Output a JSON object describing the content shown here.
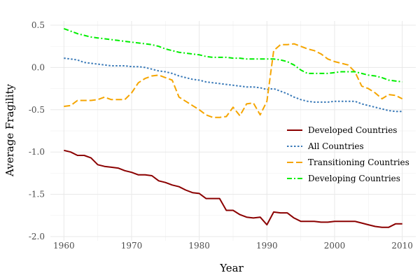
{
  "chart_data": {
    "type": "line",
    "title": "",
    "xlabel": "Year",
    "ylabel": "Average Fragility",
    "xlim": [
      1958,
      2012
    ],
    "ylim": [
      -2.05,
      0.55
    ],
    "x_ticks": [
      1960,
      1970,
      1980,
      1990,
      2000,
      2010
    ],
    "y_ticks": [
      -2.0,
      -1.5,
      -1.0,
      -0.5,
      0.0,
      0.5
    ],
    "x_tick_labels": [
      "1960",
      "1970",
      "1980",
      "1990",
      "2000",
      "2010"
    ],
    "y_tick_labels": [
      "-2.0",
      "-1.5",
      "-1.0",
      "-0.5",
      "0.0",
      "0.5"
    ],
    "grid": true,
    "legend_position": "right",
    "x": [
      1960,
      1961,
      1962,
      1963,
      1964,
      1965,
      1966,
      1967,
      1968,
      1969,
      1970,
      1971,
      1972,
      1973,
      1974,
      1975,
      1976,
      1977,
      1978,
      1979,
      1980,
      1981,
      1982,
      1983,
      1984,
      1985,
      1986,
      1987,
      1988,
      1989,
      1990,
      1991,
      1992,
      1993,
      1994,
      1995,
      1996,
      1997,
      1998,
      1999,
      2000,
      2001,
      2002,
      2003,
      2004,
      2005,
      2006,
      2007,
      2008,
      2009,
      2010
    ],
    "series": [
      {
        "name": "Developed Countries",
        "color": "#8b0000",
        "dash": "solid",
        "values": [
          -0.98,
          -1.0,
          -1.04,
          -1.04,
          -1.07,
          -1.15,
          -1.17,
          -1.18,
          -1.19,
          -1.22,
          -1.24,
          -1.27,
          -1.27,
          -1.28,
          -1.34,
          -1.36,
          -1.39,
          -1.41,
          -1.45,
          -1.48,
          -1.49,
          -1.55,
          -1.55,
          -1.55,
          -1.69,
          -1.69,
          -1.74,
          -1.77,
          -1.78,
          -1.77,
          -1.86,
          -1.71,
          -1.72,
          -1.72,
          -1.78,
          -1.82,
          -1.82,
          -1.82,
          -1.83,
          -1.83,
          -1.82,
          -1.82,
          -1.82,
          -1.82,
          -1.84,
          -1.86,
          -1.88,
          -1.89,
          -1.89,
          -1.85,
          -1.85
        ]
      },
      {
        "name": "All Countries",
        "color": "#3a7ab8",
        "dash": "dotted",
        "values": [
          0.11,
          0.1,
          0.09,
          0.06,
          0.05,
          0.04,
          0.03,
          0.02,
          0.02,
          0.02,
          0.01,
          0.01,
          0.0,
          -0.02,
          -0.04,
          -0.05,
          -0.07,
          -0.1,
          -0.12,
          -0.14,
          -0.15,
          -0.17,
          -0.18,
          -0.19,
          -0.2,
          -0.21,
          -0.22,
          -0.23,
          -0.23,
          -0.24,
          -0.26,
          -0.25,
          -0.28,
          -0.31,
          -0.35,
          -0.38,
          -0.4,
          -0.41,
          -0.41,
          -0.41,
          -0.4,
          -0.4,
          -0.4,
          -0.4,
          -0.43,
          -0.45,
          -0.47,
          -0.49,
          -0.51,
          -0.52,
          -0.52
        ]
      },
      {
        "name": "Transitioning Countries",
        "color": "#f5a500",
        "dash": "longdash",
        "values": [
          -0.46,
          -0.45,
          -0.39,
          -0.39,
          -0.39,
          -0.38,
          -0.35,
          -0.38,
          -0.38,
          -0.38,
          -0.3,
          -0.18,
          -0.13,
          -0.1,
          -0.09,
          -0.12,
          -0.15,
          -0.35,
          -0.4,
          -0.45,
          -0.5,
          -0.56,
          -0.59,
          -0.59,
          -0.58,
          -0.47,
          -0.57,
          -0.43,
          -0.42,
          -0.56,
          -0.4,
          0.2,
          0.27,
          0.27,
          0.28,
          0.25,
          0.22,
          0.2,
          0.16,
          0.1,
          0.07,
          0.05,
          0.03,
          -0.05,
          -0.22,
          -0.25,
          -0.3,
          -0.37,
          -0.32,
          -0.33,
          -0.37
        ]
      },
      {
        "name": "Developing Countries",
        "color": "#00ee00",
        "dash": "dashdot",
        "values": [
          0.46,
          0.43,
          0.4,
          0.38,
          0.36,
          0.35,
          0.34,
          0.33,
          0.32,
          0.31,
          0.3,
          0.29,
          0.28,
          0.27,
          0.25,
          0.22,
          0.2,
          0.18,
          0.17,
          0.16,
          0.15,
          0.13,
          0.12,
          0.12,
          0.12,
          0.11,
          0.11,
          0.1,
          0.1,
          0.1,
          0.1,
          0.1,
          0.09,
          0.07,
          0.03,
          -0.03,
          -0.07,
          -0.07,
          -0.07,
          -0.07,
          -0.06,
          -0.05,
          -0.05,
          -0.05,
          -0.07,
          -0.09,
          -0.1,
          -0.12,
          -0.15,
          -0.16,
          -0.17
        ]
      }
    ]
  }
}
